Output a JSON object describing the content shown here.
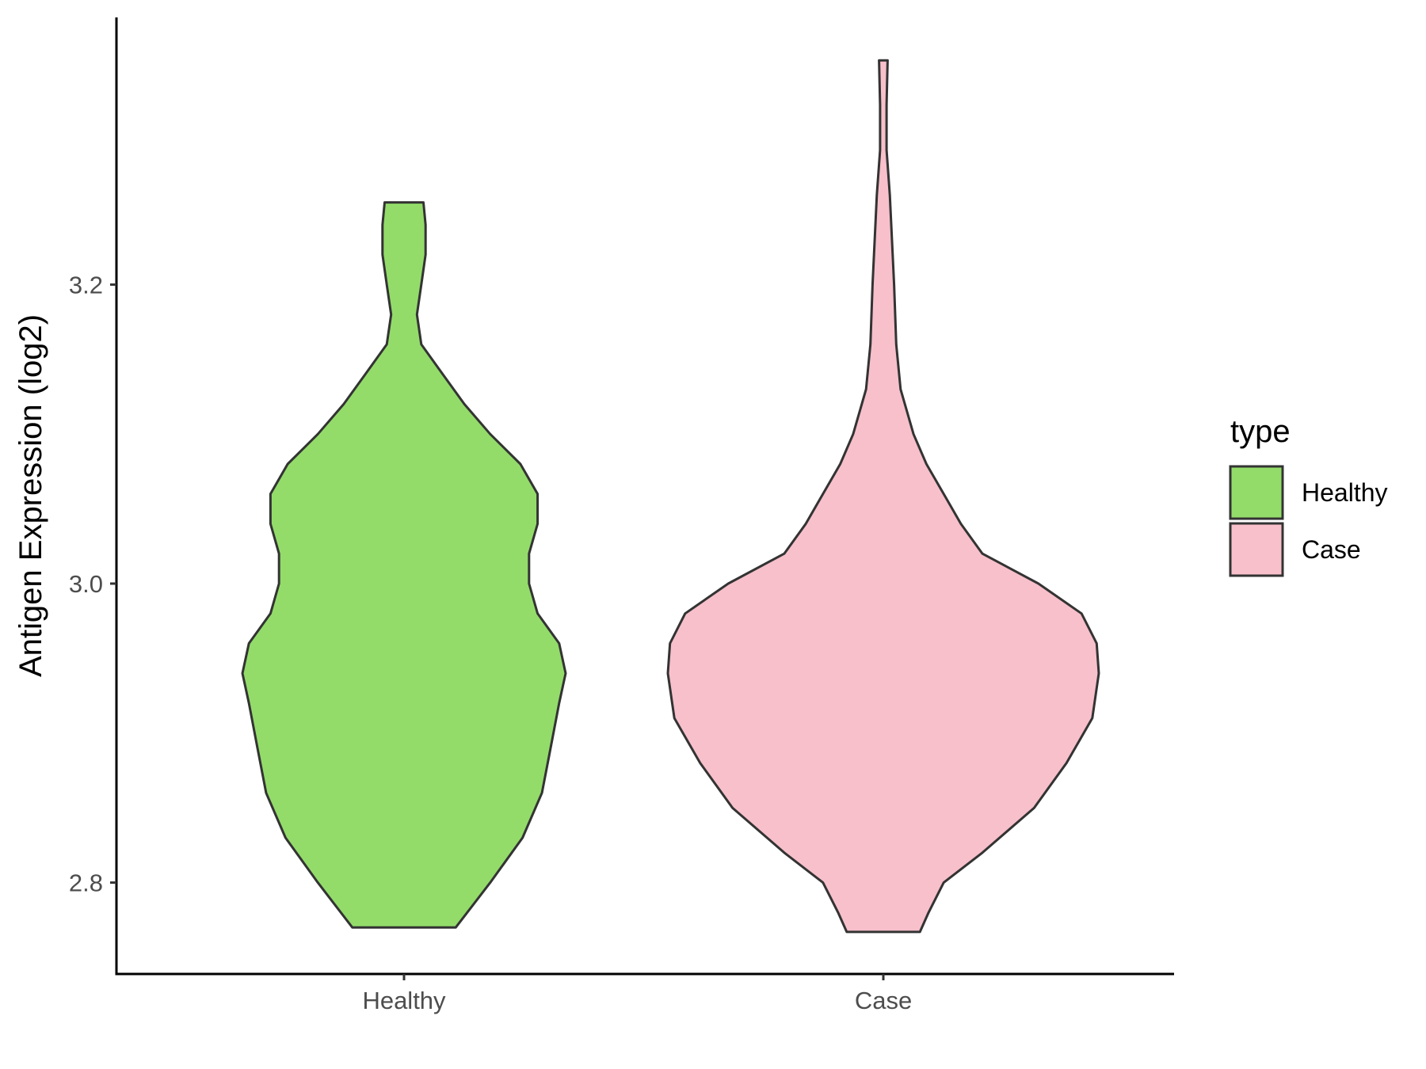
{
  "chart_data": {
    "type": "violin",
    "title": "",
    "xlabel": "",
    "ylabel": "Antigen Expression (log2)",
    "ylim": [
      2.74,
      3.38
    ],
    "yticks": [
      "2.8",
      "3.0",
      "3.2"
    ],
    "categories": [
      "Healthy",
      "Case"
    ],
    "series": [
      {
        "name": "Healthy",
        "color": "#93dc6a",
        "min": 2.77,
        "max": 3.255,
        "density": [
          [
            2.77,
            0.24
          ],
          [
            2.8,
            0.4
          ],
          [
            2.83,
            0.55
          ],
          [
            2.86,
            0.64
          ],
          [
            2.89,
            0.68
          ],
          [
            2.92,
            0.72
          ],
          [
            2.94,
            0.75
          ],
          [
            2.96,
            0.72
          ],
          [
            2.98,
            0.62
          ],
          [
            3.0,
            0.58
          ],
          [
            3.02,
            0.58
          ],
          [
            3.04,
            0.62
          ],
          [
            3.06,
            0.62
          ],
          [
            3.08,
            0.54
          ],
          [
            3.1,
            0.4
          ],
          [
            3.12,
            0.28
          ],
          [
            3.14,
            0.18
          ],
          [
            3.16,
            0.08
          ],
          [
            3.18,
            0.06
          ],
          [
            3.2,
            0.08
          ],
          [
            3.22,
            0.1
          ],
          [
            3.24,
            0.1
          ],
          [
            3.255,
            0.09
          ]
        ]
      },
      {
        "name": "Case",
        "color": "#f7c0cb",
        "min": 2.767,
        "max": 3.35,
        "density": [
          [
            2.767,
            0.17
          ],
          [
            2.78,
            0.21
          ],
          [
            2.8,
            0.28
          ],
          [
            2.82,
            0.46
          ],
          [
            2.85,
            0.7
          ],
          [
            2.88,
            0.85
          ],
          [
            2.91,
            0.97
          ],
          [
            2.94,
            1.0
          ],
          [
            2.96,
            0.99
          ],
          [
            2.98,
            0.92
          ],
          [
            3.0,
            0.72
          ],
          [
            3.02,
            0.46
          ],
          [
            3.04,
            0.36
          ],
          [
            3.06,
            0.28
          ],
          [
            3.08,
            0.2
          ],
          [
            3.1,
            0.14
          ],
          [
            3.13,
            0.08
          ],
          [
            3.16,
            0.06
          ],
          [
            3.2,
            0.05
          ],
          [
            3.23,
            0.04
          ],
          [
            3.26,
            0.03
          ],
          [
            3.29,
            0.015
          ],
          [
            3.32,
            0.015
          ],
          [
            3.35,
            0.02
          ]
        ]
      }
    ],
    "legend": {
      "title": "type",
      "position": "right"
    },
    "grid": false
  }
}
